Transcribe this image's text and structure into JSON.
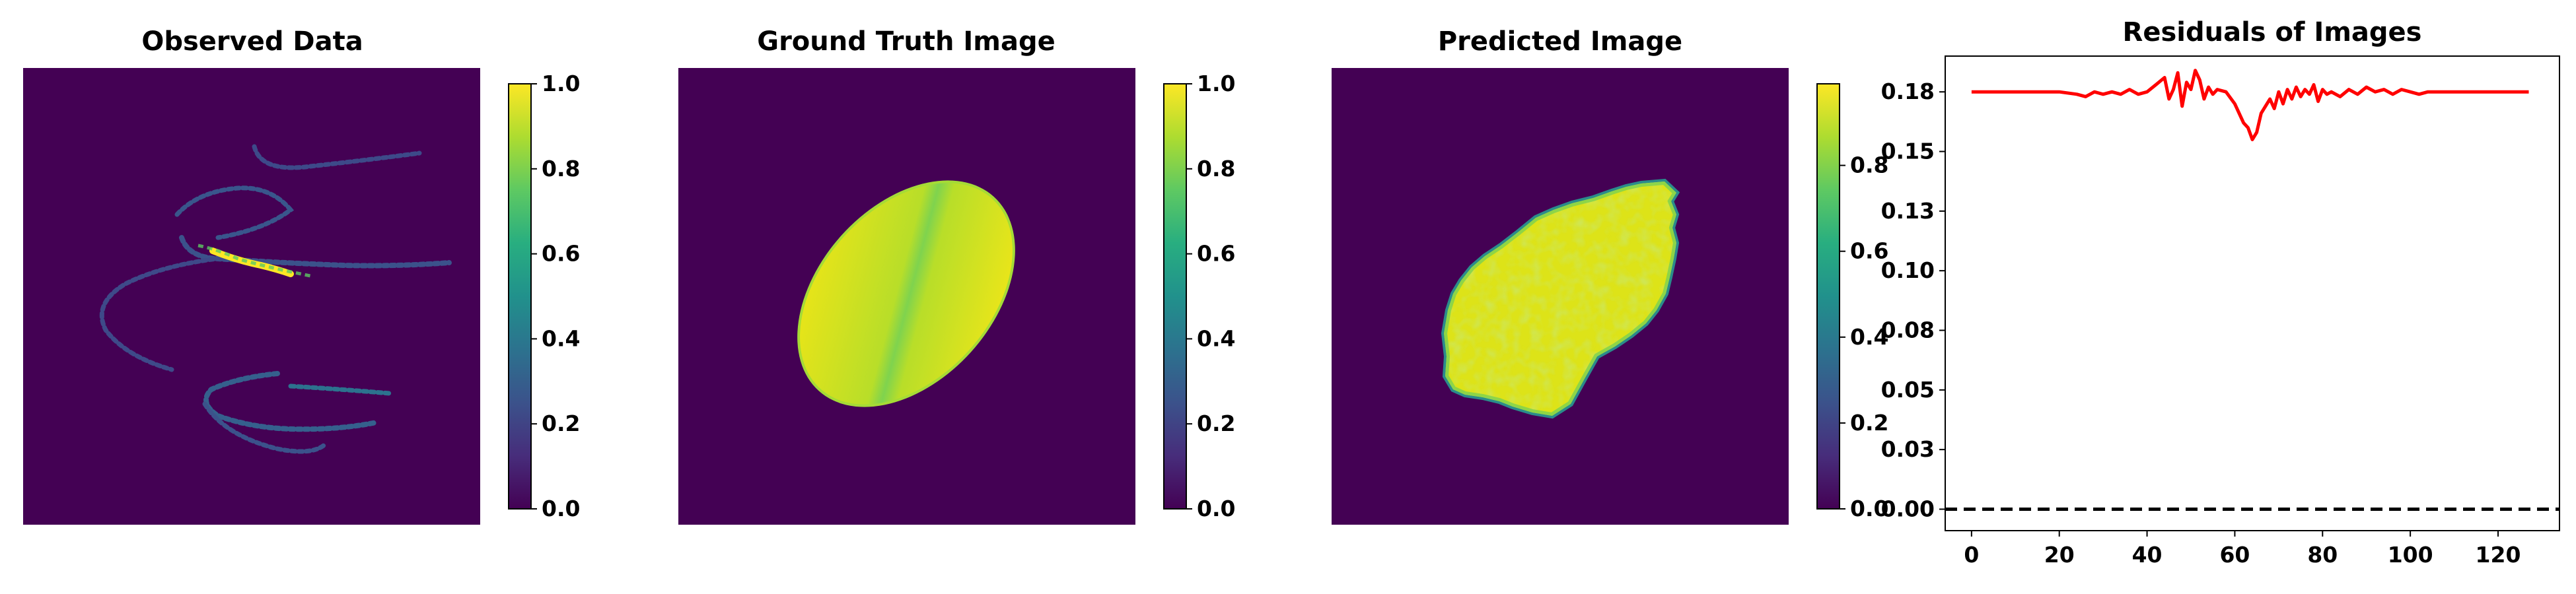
{
  "chart_data": [
    {
      "type": "heatmap",
      "title": "Observed Data",
      "colormap": "viridis",
      "background_color": "#440154",
      "description_shapes": "sparse sinogram-like curved streaks of low intensity with one bright streak near the center",
      "colorbar": {
        "min": 0.0,
        "max": 1.0,
        "ticks": [
          "0.0",
          "0.2",
          "0.4",
          "0.6",
          "0.8",
          "1.0"
        ]
      }
    },
    {
      "type": "heatmap",
      "title": "Ground Truth Image",
      "colormap": "viridis",
      "background_color": "#440154",
      "colorbar": {
        "min": 0.0,
        "max": 1.0,
        "ticks": [
          "0.0",
          "0.2",
          "0.4",
          "0.6",
          "0.8",
          "1.0"
        ]
      }
    },
    {
      "type": "heatmap",
      "title": "Predicted Image",
      "colormap": "viridis",
      "background_color": "#440154",
      "colorbar": {
        "min": 0.0,
        "max": 0.99,
        "ticks": [
          "0.0",
          "0.2",
          "0.4",
          "0.6",
          "0.8"
        ]
      }
    },
    {
      "type": "line",
      "title": "Residuals of Images",
      "xlabel": "",
      "ylabel": "",
      "xlim": [
        -6,
        134
      ],
      "ylim": [
        -0.009,
        0.19
      ],
      "x_ticks": [
        0,
        20,
        40,
        60,
        80,
        100,
        120
      ],
      "y_ticks": [
        0.0,
        0.025,
        0.05,
        0.075,
        0.1,
        0.125,
        0.15,
        0.175
      ],
      "y_tick_labels": [
        "0.00",
        "0.03",
        "0.05",
        "0.08",
        "0.10",
        "0.13",
        "0.15",
        "0.18"
      ],
      "baseline": {
        "y": 0.0,
        "style": "dashed",
        "color": "#000000"
      },
      "series": [
        {
          "color": "#ff0000",
          "x": [
            0,
            10,
            20,
            24,
            26,
            28,
            30,
            32,
            34,
            36,
            38,
            40,
            42,
            44,
            45,
            46,
            47,
            48,
            49,
            50,
            51,
            52,
            53,
            54,
            55,
            56,
            58,
            60,
            62,
            63,
            64,
            65,
            66,
            67,
            68,
            69,
            70,
            71,
            72,
            73,
            74,
            75,
            76,
            77,
            78,
            79,
            80,
            81,
            82,
            84,
            86,
            88,
            90,
            92,
            94,
            96,
            98,
            100,
            102,
            104,
            110,
            120,
            127
          ],
          "y": [
            0.175,
            0.175,
            0.175,
            0.174,
            0.173,
            0.175,
            0.174,
            0.175,
            0.174,
            0.176,
            0.174,
            0.175,
            0.178,
            0.181,
            0.172,
            0.176,
            0.183,
            0.169,
            0.179,
            0.176,
            0.184,
            0.18,
            0.172,
            0.177,
            0.174,
            0.176,
            0.175,
            0.17,
            0.162,
            0.16,
            0.155,
            0.158,
            0.166,
            0.169,
            0.172,
            0.168,
            0.175,
            0.17,
            0.176,
            0.172,
            0.177,
            0.173,
            0.176,
            0.174,
            0.178,
            0.171,
            0.176,
            0.174,
            0.175,
            0.173,
            0.176,
            0.174,
            0.177,
            0.175,
            0.176,
            0.174,
            0.176,
            0.175,
            0.174,
            0.175,
            0.175,
            0.175,
            0.175
          ]
        }
      ]
    }
  ]
}
